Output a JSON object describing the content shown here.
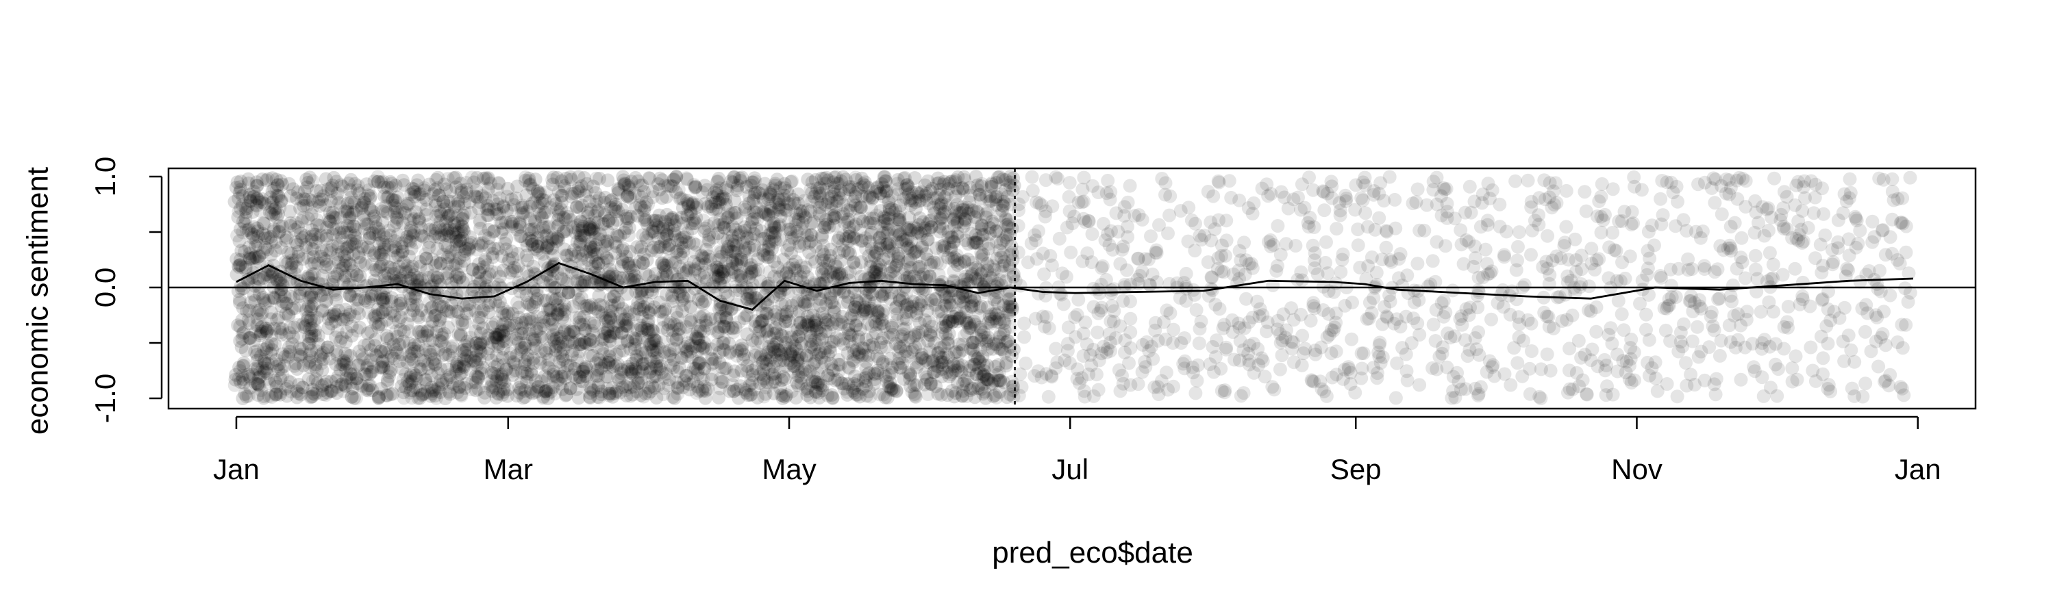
{
  "chart_data": {
    "type": "scatter",
    "title": "",
    "xlabel": "pred_eco$date",
    "ylabel": "economic sentiment",
    "xlim": [
      "2021-01-01",
      "2021-12-31"
    ],
    "ylim": [
      -1.0,
      1.0
    ],
    "x_ticks": [
      "Jan",
      "Mar",
      "May",
      "Jul",
      "Sep",
      "Nov",
      "Jan"
    ],
    "y_ticks": [
      "-1.0",
      "0.0",
      "1.0"
    ],
    "y_tick_values": [
      -1.0,
      -0.5,
      0.0,
      0.5,
      1.0
    ],
    "reference_hline": 0.0,
    "reference_vline": "2021-06-19",
    "point_color": "#000000",
    "point_style": "translucent circles, jittered, approx. 6000 points spanning -1.0 to 1.0 throughout the year, denser before the dashed line",
    "series": [
      {
        "x": [
          "2021-01-01",
          "2021-01-08",
          "2021-01-15",
          "2021-01-22",
          "2021-01-29",
          "2021-02-05",
          "2021-02-12",
          "2021-02-19",
          "2021-02-26",
          "2021-03-05",
          "2021-03-12",
          "2021-03-19",
          "2021-03-26",
          "2021-04-02",
          "2021-04-09",
          "2021-04-16",
          "2021-04-23",
          "2021-04-30",
          "2021-05-07",
          "2021-05-14",
          "2021-05-21",
          "2021-05-28",
          "2021-06-04",
          "2021-06-11",
          "2021-06-18",
          "2021-06-25",
          "2021-07-02",
          "2021-07-16",
          "2021-07-30",
          "2021-08-13",
          "2021-08-27",
          "2021-09-03",
          "2021-09-10",
          "2021-09-24",
          "2021-10-08",
          "2021-10-22",
          "2021-11-05",
          "2021-11-19",
          "2021-12-03",
          "2021-12-17",
          "2021-12-31"
        ],
        "y": [
          0.05,
          0.2,
          0.06,
          -0.02,
          0.0,
          0.03,
          -0.06,
          -0.1,
          -0.08,
          0.05,
          0.22,
          0.12,
          0.0,
          0.05,
          0.06,
          -0.12,
          -0.2,
          0.06,
          -0.03,
          0.04,
          0.06,
          0.03,
          0.02,
          -0.05,
          0.0,
          -0.04,
          -0.05,
          -0.04,
          -0.03,
          0.06,
          0.05,
          0.03,
          -0.02,
          -0.05,
          -0.08,
          -0.1,
          0.0,
          -0.02,
          0.02,
          0.06,
          0.08
        ]
      }
    ]
  }
}
